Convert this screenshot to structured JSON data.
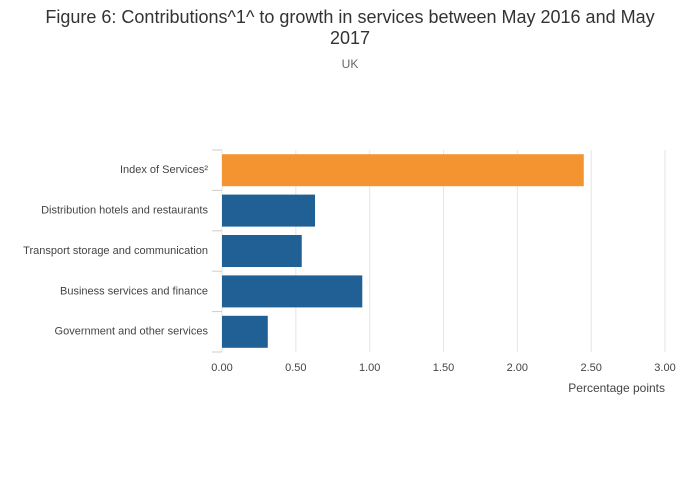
{
  "chart_data": {
    "type": "barh",
    "title": "Figure 6: Contributions^1^ to growth in services between May 2016 and May 2017",
    "subtitle": "UK",
    "x_label": "Percentage points",
    "categories": [
      "Index of Services²",
      "Distribution hotels and restaurants",
      "Transport storage and communication",
      "Business services and finance",
      "Government and other services"
    ],
    "values": [
      2.45,
      0.63,
      0.54,
      0.95,
      0.31
    ],
    "colors": [
      "#f39431",
      "#206095",
      "#206095",
      "#206095",
      "#206095"
    ],
    "xlim": [
      0,
      3
    ],
    "xticks": [
      {
        "value": 0,
        "label": "0.00"
      },
      {
        "value": 0.5,
        "label": "0.50"
      },
      {
        "value": 1,
        "label": "1.00"
      },
      {
        "value": 1.5,
        "label": "1.50"
      },
      {
        "value": 2,
        "label": "2.00"
      },
      {
        "value": 2.5,
        "label": "2.50"
      },
      {
        "value": 3,
        "label": "3.00"
      }
    ],
    "grid": true
  }
}
